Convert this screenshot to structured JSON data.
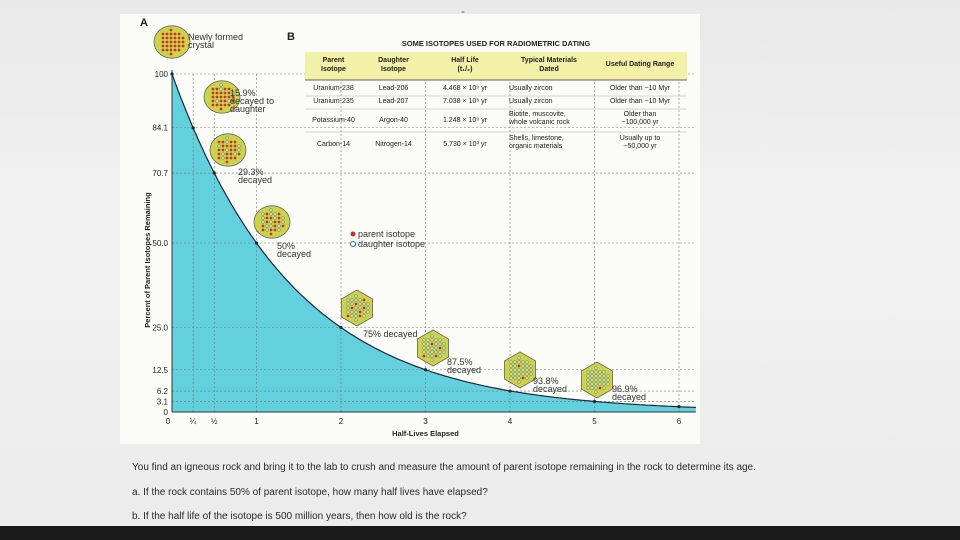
{
  "page": {
    "corner_text": "",
    "window_mark": "-"
  },
  "panel_labels": {
    "a": "A",
    "b": "B"
  },
  "annotations": {
    "new_crystal": [
      "Newly formed",
      "crystal"
    ],
    "decay_1": [
      "15.9%",
      "decayed to",
      "daughter"
    ],
    "decay_2": [
      "29.3%",
      "decayed"
    ],
    "decay_3": [
      "50%",
      "decayed"
    ],
    "decay_4": [
      "75% decayed"
    ],
    "decay_5": [
      "87.5%",
      "decayed"
    ],
    "decay_6": [
      "93.8%",
      "decayed"
    ],
    "decay_7": [
      "96.9%",
      "decayed"
    ]
  },
  "legend": {
    "parent": "parent isotope",
    "daughter": "daughter isotope"
  },
  "colors": {
    "curve_fill": "#48c8d8",
    "curve_line": "#1a2a3a",
    "crystal_fill": "#cdd24a",
    "parent_dot": "#c0392b",
    "daughter_dot": "#e8e08a",
    "table_header_bg": "#f3f0a8",
    "table_row_line": "#333333"
  },
  "chart_data": {
    "type": "area",
    "title": "",
    "xlabel": "Half-Lives Elapsed",
    "ylabel": "Percent of Parent Isotopes Remaining",
    "x_tick_labels": [
      "0",
      "¼",
      "½",
      "1",
      "2",
      "3",
      "4",
      "5",
      "6"
    ],
    "x_tick_values": [
      0,
      0.25,
      0.5,
      1,
      2,
      3,
      4,
      5,
      6
    ],
    "y_tick_labels": [
      "0",
      "3.1",
      "6.2",
      "12.5",
      "25.0",
      "50.0",
      "70.7",
      "84.1",
      "100"
    ],
    "y_tick_values": [
      0,
      3.1,
      6.2,
      12.5,
      25.0,
      50.0,
      70.7,
      84.1,
      100
    ],
    "xlim": [
      0,
      6.2
    ],
    "ylim": [
      0,
      100
    ],
    "series": [
      {
        "x": [
          0,
          0.25,
          0.5,
          1,
          2,
          3,
          4,
          5,
          6
        ],
        "y": [
          100,
          84.1,
          70.7,
          50.0,
          25.0,
          12.5,
          6.2,
          3.1,
          1.6
        ]
      }
    ],
    "grid": "dotted at tick values",
    "crystal_markers_at_x": [
      0,
      0.25,
      0.5,
      1,
      2,
      3,
      4,
      5
    ]
  },
  "table": {
    "title": "SOME ISOTOPES USED FOR RADIOMETRIC DATING",
    "headers": [
      [
        "Parent",
        "Isotope"
      ],
      [
        "Daughter",
        "Isotope"
      ],
      [
        "Half Life",
        "(t₁/₂)"
      ],
      [
        "Typical Materials",
        "Dated"
      ],
      [
        "Useful Dating Range"
      ]
    ],
    "rows": [
      [
        [
          "Uranium-238"
        ],
        [
          "Lead-206"
        ],
        [
          "4.468 × 10⁹ yr"
        ],
        [
          "Usually zircon"
        ],
        [
          "Older than ~10 Myr"
        ]
      ],
      [
        [
          "Uranium-235"
        ],
        [
          "Lead-207"
        ],
        [
          "7.038 × 10⁸ yr"
        ],
        [
          "Usually zircon"
        ],
        [
          "Older than ~10 Myr"
        ]
      ],
      [
        [
          "Potassium-40"
        ],
        [
          "Argon-40"
        ],
        [
          "1.248 × 10⁹ yr"
        ],
        [
          "Biotite, muscovite,",
          "whole volcanic rock"
        ],
        [
          "Older than",
          "~100,000 yr"
        ]
      ],
      [
        [
          "Carbon-14"
        ],
        [
          "Nitrogen-14"
        ],
        [
          "5.730 × 10³ yr"
        ],
        [
          "Shells, limestone,",
          "organic materials"
        ],
        [
          "Usually up to",
          "~50,000 yr"
        ]
      ]
    ]
  },
  "questions": {
    "intro": "You find an igneous rock and bring it to the lab to crush and measure the amount of parent isotope remaining in the rock to determine its age.",
    "a": "a. If the rock contains 50% of parent isotope, how many half lives have elapsed?",
    "b": "b. If the half life of the isotope is 500 million years, then how old is the rock?"
  }
}
